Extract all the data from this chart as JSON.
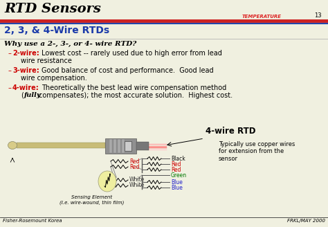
{
  "title": "RTD Sensors",
  "subtitle": "2, 3, & 4-Wire RTDs",
  "header_right": "TEMPERATURE",
  "header_page": "13",
  "footer_left": "Fisher-Rosemount Korea",
  "footer_right": "FRKL/MAY 2000",
  "bg_color": "#f0f0e0",
  "title_color": "#000000",
  "subtitle_color": "#1a3aaa",
  "body_text_color": "#000000",
  "red_color": "#cc0000",
  "blue_color": "#2222cc",
  "green_color": "#007700",
  "black_color": "#000000",
  "wire_diagram_label": "4-wire RTD",
  "copper_note": "Typically use copper wires\nfor extension from the\nsensor",
  "sensing_label": "Sensing Element\n(I.e. wire-wound, thin film)"
}
